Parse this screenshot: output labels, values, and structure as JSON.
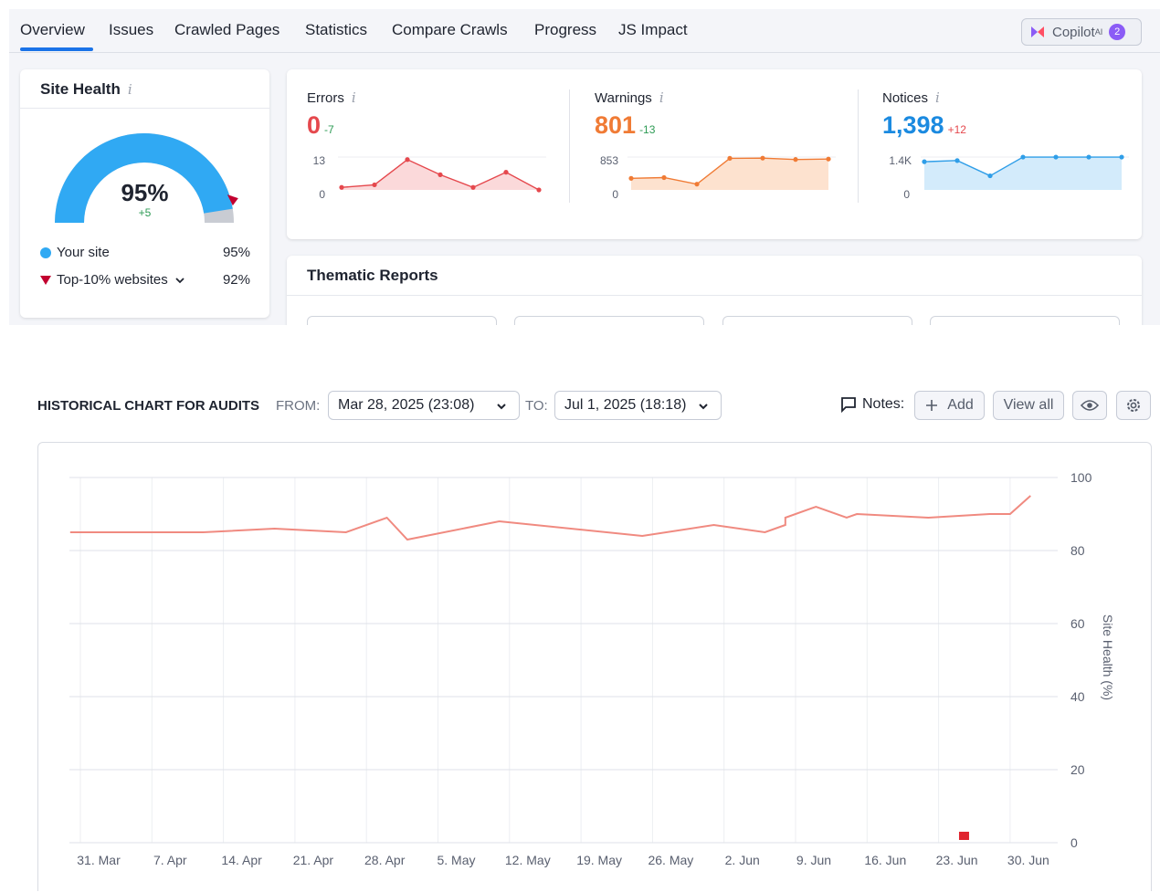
{
  "tabs": [
    {
      "label": "Overview",
      "active": true
    },
    {
      "label": "Issues"
    },
    {
      "label": "Crawled Pages"
    },
    {
      "label": "Statistics"
    },
    {
      "label": "Compare Crawls"
    },
    {
      "label": "Progress"
    },
    {
      "label": "JS Impact"
    }
  ],
  "copilot": {
    "label": "Copilot",
    "sup": "AI",
    "badge": "2"
  },
  "site_health": {
    "title": "Site Health",
    "percent": "95%",
    "percent_value": 95,
    "delta": "+5",
    "legend": [
      {
        "label": "Your site",
        "value": "95%"
      },
      {
        "label": "Top-10% websites",
        "value": "92%"
      }
    ]
  },
  "issues": [
    {
      "label": "Errors",
      "value": "0",
      "change": "-7",
      "color": "#e5484d",
      "fill": "#fbd9da",
      "ymax_label": "13",
      "ymin_label": "0",
      "ymax": 13,
      "points": [
        1,
        2,
        12,
        6,
        1,
        7,
        0
      ]
    },
    {
      "label": "Warnings",
      "value": "801",
      "change": "-13",
      "color": "#f07b35",
      "fill": "#fde2cf",
      "ymax_label": "853",
      "ymin_label": "0",
      "ymax": 853,
      "points": [
        300,
        320,
        150,
        820,
        825,
        790,
        801
      ]
    },
    {
      "label": "Notices",
      "value": "1,398",
      "change": "+12",
      "color": "#2f9ee8",
      "fill": "#d3ebfb",
      "ymax_label": "1.4K",
      "ymin_label": "0",
      "ymax": 1400,
      "points": [
        1200,
        1250,
        600,
        1398,
        1398,
        1398,
        1398
      ]
    }
  ],
  "thematic": {
    "title": "Thematic Reports"
  },
  "historical": {
    "title": "HISTORICAL CHART FOR AUDITS",
    "from_label": "FROM:",
    "from_value": "Mar 28, 2025 (23:08)",
    "to_label": "TO:",
    "to_value": "Jul 1, 2025 (18:18)",
    "notes_label": "Notes:",
    "add_label": "Add",
    "view_all_label": "View all"
  },
  "chart_data": {
    "type": "line",
    "ylabel": "Site Health (%)",
    "ylim": [
      0,
      100
    ],
    "yticks": [
      0,
      20,
      40,
      60,
      80,
      100
    ],
    "xticks": [
      "31. Mar",
      "7. Apr",
      "14. Apr",
      "21. Apr",
      "28. Apr",
      "5. May",
      "12. May",
      "19. May",
      "26. May",
      "2. Jun",
      "9. Jun",
      "16. Jun",
      "23. Jun",
      "30. Jun"
    ],
    "x_start": "2025-03-31",
    "series": [
      {
        "color": "#f08a80",
        "points": [
          {
            "x": "2025-03-30",
            "y": 85
          },
          {
            "x": "2025-04-12",
            "y": 85
          },
          {
            "x": "2025-04-19",
            "y": 86
          },
          {
            "x": "2025-04-26",
            "y": 85
          },
          {
            "x": "2025-04-30",
            "y": 89
          },
          {
            "x": "2025-05-02",
            "y": 83
          },
          {
            "x": "2025-05-11",
            "y": 88
          },
          {
            "x": "2025-05-25",
            "y": 84
          },
          {
            "x": "2025-06-01",
            "y": 87
          },
          {
            "x": "2025-06-06",
            "y": 85
          },
          {
            "x": "2025-06-08",
            "y": 87
          },
          {
            "x": "2025-06-08",
            "y": 89
          },
          {
            "x": "2025-06-11",
            "y": 92
          },
          {
            "x": "2025-06-14",
            "y": 89
          },
          {
            "x": "2025-06-15",
            "y": 90
          },
          {
            "x": "2025-06-22",
            "y": 89
          },
          {
            "x": "2025-06-28",
            "y": 90
          },
          {
            "x": "2025-06-30",
            "y": 90
          },
          {
            "x": "2025-07-02",
            "y": 95
          }
        ]
      }
    ],
    "flag_markers": [
      {
        "x": "2025-06-25",
        "y": 0,
        "color": "#e0242e"
      }
    ]
  }
}
